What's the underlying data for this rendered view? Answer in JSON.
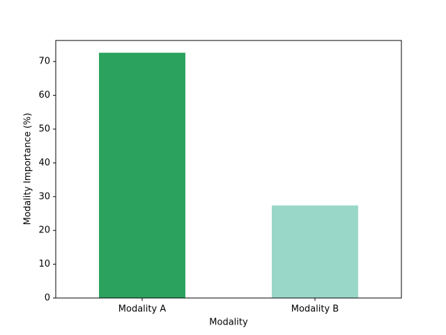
{
  "chart_data": {
    "type": "bar",
    "categories": [
      "Modality A",
      "Modality B"
    ],
    "values": [
      72.6,
      27.4
    ],
    "colors": [
      "#2ca25f",
      "#99d8c9"
    ],
    "xlabel": "Modality",
    "ylabel": "Modality Importance (%)",
    "ylim": [
      0,
      76.23
    ],
    "yticks": [
      0,
      10,
      20,
      30,
      40,
      50,
      60,
      70
    ],
    "grid": false
  }
}
